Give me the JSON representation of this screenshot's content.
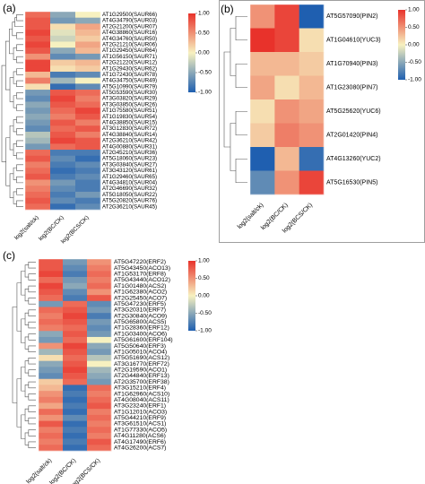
{
  "chart_data": [
    {
      "type": "heatmap",
      "panel_label": "(a)",
      "x": [
        "log2(salt/ck)",
        "log2(BC/CK)",
        "log2(BCS/CK)"
      ],
      "colorbar_ticks": [
        "1.00",
        "0.50",
        "0.00",
        "-0.50",
        "-1.00"
      ],
      "zlim": [
        -1,
        1
      ],
      "colors": {
        "high": "#e8322b",
        "mid": "#f7f1c0",
        "low": "#1f5fb0"
      },
      "rows": [
        "AT1G29500(SAUR66)",
        "AT4G34790(SAUR03)",
        "AT2G21200(SAUR07)",
        "AT4G38860(SAUR16)",
        "AT4G34760(SAUR50)",
        "AT2G21210(SAUR06)",
        "AT1G29450(SAUR64)",
        "AT1G56150(SAUR71)",
        "AT2G21220(SAUR12)",
        "AT1G29430(SAUR62)",
        "AT1G72430(SAUR78)",
        "AT4G34750(SAUR49)",
        "AT5G10990(SAUR79)",
        "AT5G53590(SAUR30)",
        "AT3G03820(SAUR29)",
        "AT3G03850(SAUR26)",
        "AT1G75580(SAUR51)",
        "AT1G19830(SAUR54)",
        "AT4G38850(SAUR15)",
        "AT3G12830(SAUR72)",
        "AT4G38840(SAUR14)",
        "AT2G36210(SAUR42)",
        "AT4G00880(SAUR31)",
        "AT2G45210(SAUR36)",
        "AT5G18060(SAUR23)",
        "AT3G03840(SAUR27)",
        "AT3G43120(SAUR61)",
        "AT1G29460(SAUR65)",
        "AT4G34810(SAUR04)",
        "AT2G46690(SAUR32)",
        "AT5G18050(SAUR22)",
        "AT5G20820(SAUR76)",
        "AT2G36210(SAUR45)"
      ],
      "values": [
        [
          0.7,
          -0.5,
          0.0
        ],
        [
          0.8,
          -0.6,
          -0.5
        ],
        [
          0.8,
          0.1,
          0.4
        ],
        [
          0.9,
          -0.1,
          0.3
        ],
        [
          0.8,
          -0.2,
          0.2
        ],
        [
          0.9,
          0.0,
          0.4
        ],
        [
          0.8,
          -0.5,
          0.3
        ],
        [
          0.5,
          -0.7,
          -0.6
        ],
        [
          0.9,
          0.2,
          0.3
        ],
        [
          0.9,
          0.1,
          0.2
        ],
        [
          0.3,
          -0.8,
          -0.7
        ],
        [
          0.6,
          -0.4,
          0.0
        ],
        [
          0.1,
          -0.9,
          -0.7
        ],
        [
          -0.6,
          0.8,
          0.7
        ],
        [
          -0.7,
          0.9,
          0.6
        ],
        [
          -0.5,
          0.8,
          0.7
        ],
        [
          -0.6,
          0.7,
          0.9
        ],
        [
          -0.5,
          0.6,
          0.8
        ],
        [
          -0.6,
          0.8,
          0.6
        ],
        [
          -0.7,
          0.7,
          0.8
        ],
        [
          -0.3,
          0.8,
          0.6
        ],
        [
          -0.4,
          0.9,
          0.8
        ],
        [
          -0.6,
          0.7,
          0.8
        ],
        [
          0.7,
          -0.8,
          -0.8
        ],
        [
          0.8,
          -0.7,
          -0.9
        ],
        [
          0.6,
          -0.8,
          -0.7
        ],
        [
          0.7,
          -0.9,
          -0.8
        ],
        [
          0.8,
          -0.8,
          -0.7
        ],
        [
          0.5,
          -0.6,
          -0.8
        ],
        [
          0.6,
          -0.7,
          -0.8
        ],
        [
          0.7,
          -0.8,
          -0.6
        ],
        [
          0.8,
          -0.7,
          -0.8
        ],
        [
          0.7,
          -0.9,
          -0.7
        ]
      ]
    },
    {
      "type": "heatmap",
      "panel_label": "(b)",
      "x": [
        "log2(salt/ck)",
        "log2(BC/CK)",
        "log2(BCS/CK)"
      ],
      "colorbar_ticks": [
        "1.00",
        "0.50",
        "0.00",
        "-0.50",
        "-1.00"
      ],
      "zlim": [
        -1,
        1
      ],
      "colors": {
        "high": "#e8322b",
        "mid": "#f7f1c0",
        "low": "#1f5fb0"
      },
      "rows": [
        "AT5G57090(PIN2)",
        "AT1G04610(YUC3)",
        "AT1G70940(PIN3)",
        "AT1G23080(PIN7)",
        "AT5G25620(YUC6)",
        "AT2G01420(PIN4)",
        "AT4G13260(YUC2)",
        "AT5G16530(PIN5)"
      ],
      "values": [
        [
          0.5,
          0.9,
          -1.0
        ],
        [
          1.0,
          0.9,
          0.1
        ],
        [
          0.3,
          0.3,
          0.2
        ],
        [
          0.4,
          0.1,
          0.3
        ],
        [
          0.1,
          0.5,
          0.4
        ],
        [
          0.2,
          0.6,
          0.5
        ],
        [
          -1.0,
          0.3,
          -0.9
        ],
        [
          -0.7,
          0.5,
          0.9
        ]
      ]
    },
    {
      "type": "heatmap",
      "panel_label": "(c)",
      "x": [
        "log2(salt/ck)",
        "log2(BC/CK)",
        "log2(BCS/CK)"
      ],
      "colorbar_ticks": [
        "1.00",
        "0.50",
        "0.00",
        "-0.50",
        "-1.00"
      ],
      "zlim": [
        -1,
        1
      ],
      "colors": {
        "high": "#e8322b",
        "mid": "#f7f1c0",
        "low": "#1f5fb0"
      },
      "rows": [
        "AT5G47220(ERF2)",
        "AT5G43450(ACO13)",
        "AT1G53170(ERF8)",
        "AT5G43440(ACO12)",
        "AT1G01480(ACS2)",
        "AT1G62380(ACO2)",
        "AT2G25450(ACO7)",
        "AT5G47230(ERF5)",
        "AT3G20310(ERF7)",
        "AT2G30840(ACO9)",
        "AT5G65800(ACS5)",
        "AT1G28360(ERF12)",
        "AT1G03400(ACO6)",
        "AT5G61600(ERF104)",
        "AT5G50640(ERF3)",
        "AT1G05010(ACO4)",
        "AT5G51690(ACS12)",
        "AT3G16770(ERF72)",
        "AT2G19590(ACO1)",
        "AT2G44840(ERF13)",
        "AT2G35700(ERF38)",
        "AT3G15210(ERF4)",
        "AT1G62960(ACS10)",
        "AT4G08040(ACS11)",
        "AT3G23240(ERF1)",
        "AT1G12010(ACO3)",
        "AT5G44210(ERF9)",
        "AT3G61510(ACS1)",
        "AT1G77330(ACO5)",
        "AT4G11280(ACS6)",
        "AT4G17490(ERF6)",
        "AT4G26200(ACS7)"
      ],
      "values": [
        [
          0.8,
          -0.6,
          0.5
        ],
        [
          0.8,
          -0.7,
          0.6
        ],
        [
          0.9,
          -0.8,
          0.7
        ],
        [
          0.7,
          -0.6,
          0.6
        ],
        [
          0.9,
          -0.5,
          0.7
        ],
        [
          0.8,
          -0.7,
          0.5
        ],
        [
          0.7,
          -0.8,
          0.8
        ],
        [
          -0.6,
          0.7,
          -0.7
        ],
        [
          0.7,
          0.8,
          -0.6
        ],
        [
          0.6,
          0.9,
          -0.8
        ],
        [
          0.7,
          0.8,
          -0.6
        ],
        [
          0.6,
          0.7,
          -0.7
        ],
        [
          -0.5,
          0.8,
          -0.6
        ],
        [
          -0.6,
          0.7,
          0.0
        ],
        [
          0.5,
          0.9,
          -0.5
        ],
        [
          -0.4,
          0.8,
          -0.6
        ],
        [
          0.1,
          0.7,
          -0.3
        ],
        [
          -0.5,
          0.8,
          0.0
        ],
        [
          -0.6,
          0.9,
          -0.4
        ],
        [
          -0.7,
          0.8,
          -0.5
        ],
        [
          0.2,
          0.7,
          -0.6
        ],
        [
          0.3,
          -0.9,
          0.7
        ],
        [
          0.5,
          -0.8,
          0.6
        ],
        [
          0.6,
          -0.9,
          0.7
        ],
        [
          0.4,
          -0.8,
          0.8
        ],
        [
          0.7,
          -0.9,
          0.6
        ],
        [
          0.5,
          -0.7,
          0.7
        ],
        [
          0.8,
          -0.9,
          0.6
        ],
        [
          0.6,
          -0.8,
          0.7
        ],
        [
          0.7,
          -0.9,
          0.6
        ],
        [
          0.6,
          -0.8,
          0.8
        ],
        [
          0.7,
          -0.9,
          0.7
        ]
      ]
    }
  ]
}
